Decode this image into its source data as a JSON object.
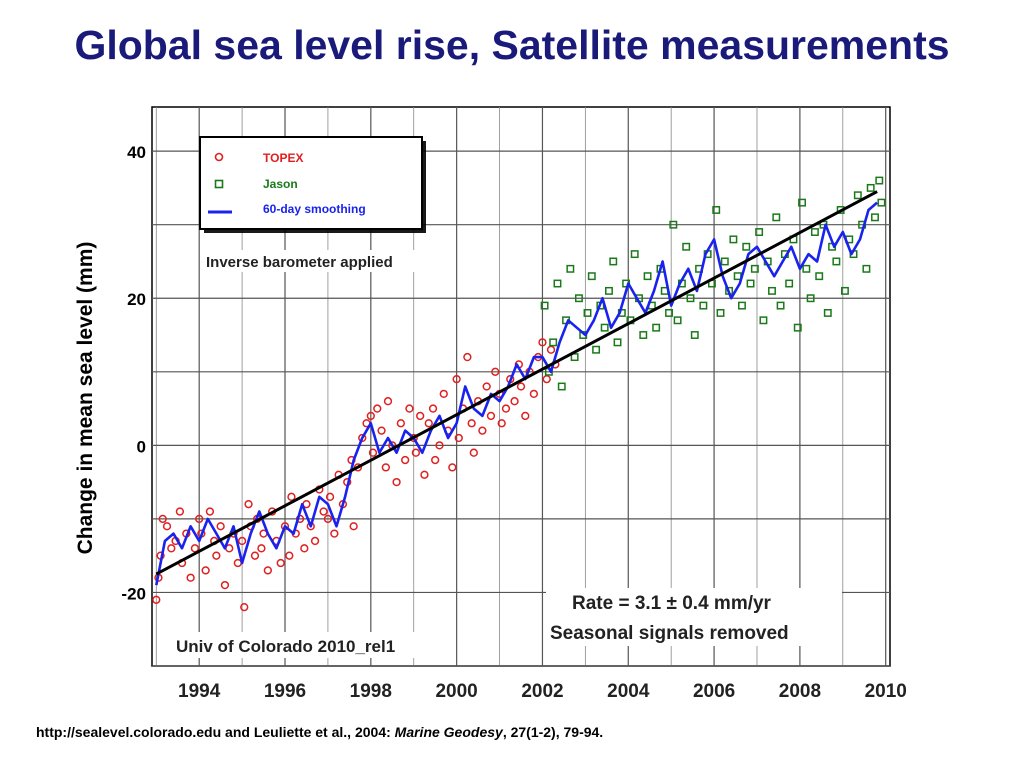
{
  "slide": {
    "title": "Global sea level rise, Satellite measurements",
    "citation": {
      "prefix": "http://sealevel.colorado.edu and Leuliette et al., 2004: ",
      "journal": "Marine Geodesy",
      "suffix": ", 27(1-2), 79-94."
    }
  },
  "colors": {
    "topex": "#e02020",
    "jason": "#1a7a1a",
    "smoothing": "#1a22ee",
    "trend": "#000000",
    "grid": "#555555"
  },
  "chart_data": {
    "type": "scatter",
    "title": "",
    "xlabel": "",
    "ylabel": "Change in mean sea level (mm)",
    "xlim": [
      1992.9,
      2010.1
    ],
    "ylim": [
      -30,
      46
    ],
    "x_ticks": [
      1994,
      1996,
      1998,
      2000,
      2002,
      2004,
      2006,
      2008,
      2010
    ],
    "y_ticks": [
      -20,
      0,
      20,
      40
    ],
    "grid": true,
    "legend_position": "top-left",
    "legend": [
      {
        "name": "TOPEX",
        "marker": "circle"
      },
      {
        "name": "Jason",
        "marker": "square"
      },
      {
        "name": "60-day smoothing",
        "marker": "line"
      }
    ],
    "annotations": [
      "Inverse barometer applied",
      "Univ of Colorado 2010_rel1",
      "Rate = 3.1 ± 0.4 mm/yr",
      "Seasonal signals removed"
    ],
    "trend_line": {
      "x": [
        1993.0,
        2009.8
      ],
      "y": [
        -17.5,
        34.5
      ]
    },
    "smoothing": {
      "name": "60-day smoothing",
      "x": [
        1993.0,
        1993.2,
        1993.4,
        1993.6,
        1993.8,
        1994.0,
        1994.2,
        1994.4,
        1994.6,
        1994.8,
        1995.0,
        1995.2,
        1995.4,
        1995.6,
        1995.8,
        1996.0,
        1996.2,
        1996.4,
        1996.6,
        1996.8,
        1997.0,
        1997.2,
        1997.4,
        1997.6,
        1997.8,
        1998.0,
        1998.2,
        1998.4,
        1998.6,
        1998.8,
        1999.0,
        1999.2,
        1999.4,
        1999.6,
        1999.8,
        2000.0,
        2000.2,
        2000.4,
        2000.6,
        2000.8,
        2001.0,
        2001.2,
        2001.4,
        2001.6,
        2001.8,
        2002.0,
        2002.2,
        2002.4,
        2002.6,
        2002.8,
        2003.0,
        2003.2,
        2003.4,
        2003.6,
        2003.8,
        2004.0,
        2004.2,
        2004.4,
        2004.6,
        2004.8,
        2005.0,
        2005.2,
        2005.4,
        2005.6,
        2005.8,
        2006.0,
        2006.2,
        2006.4,
        2006.6,
        2006.8,
        2007.0,
        2007.2,
        2007.4,
        2007.6,
        2007.8,
        2008.0,
        2008.2,
        2008.4,
        2008.6,
        2008.8,
        2009.0,
        2009.2,
        2009.4,
        2009.6,
        2009.8
      ],
      "y": [
        -19,
        -13,
        -12,
        -14,
        -11,
        -13,
        -10,
        -12,
        -14,
        -11,
        -16,
        -12,
        -9,
        -12,
        -14,
        -11,
        -12,
        -8,
        -11,
        -7,
        -8,
        -11,
        -7,
        -2,
        1,
        3,
        -1,
        1,
        -1,
        2,
        1,
        -1,
        2,
        4,
        1,
        3,
        8,
        5,
        4,
        7,
        6,
        8,
        11,
        9,
        12,
        12,
        10,
        14,
        17,
        16,
        15,
        17,
        20,
        16,
        18,
        22,
        20,
        18,
        21,
        25,
        19,
        22,
        24,
        21,
        26,
        28,
        23,
        20,
        22,
        26,
        27,
        25,
        23,
        25,
        27,
        24,
        26,
        25,
        30,
        27,
        29,
        26,
        28,
        32,
        33
      ]
    },
    "series": [
      {
        "name": "TOPEX",
        "marker": "circle",
        "x": [
          1993.0,
          1993.05,
          1993.1,
          1993.15,
          1993.25,
          1993.35,
          1993.45,
          1993.55,
          1993.6,
          1993.7,
          1993.8,
          1993.9,
          1994.0,
          1994.05,
          1994.15,
          1994.25,
          1994.35,
          1994.4,
          1994.5,
          1994.6,
          1994.7,
          1994.8,
          1994.9,
          1995.0,
          1995.05,
          1995.15,
          1995.2,
          1995.3,
          1995.35,
          1995.45,
          1995.5,
          1995.6,
          1995.7,
          1995.8,
          1995.9,
          1996.0,
          1996.1,
          1996.15,
          1996.25,
          1996.35,
          1996.45,
          1996.5,
          1996.6,
          1996.7,
          1996.8,
          1996.9,
          1997.0,
          1997.05,
          1997.15,
          1997.25,
          1997.35,
          1997.45,
          1997.55,
          1997.6,
          1997.7,
          1997.8,
          1997.9,
          1998.0,
          1998.05,
          1998.15,
          1998.25,
          1998.35,
          1998.4,
          1998.5,
          1998.6,
          1998.7,
          1998.8,
          1998.9,
          1999.0,
          1999.05,
          1999.15,
          1999.25,
          1999.35,
          1999.45,
          1999.5,
          1999.6,
          1999.7,
          1999.8,
          1999.9,
          2000.0,
          2000.05,
          2000.15,
          2000.25,
          2000.35,
          2000.4,
          2000.5,
          2000.6,
          2000.7,
          2000.8,
          2000.9,
          2001.0,
          2001.05,
          2001.15,
          2001.25,
          2001.35,
          2001.45,
          2001.5,
          2001.6,
          2001.7,
          2001.8,
          2001.9,
          2002.0,
          2002.1,
          2002.2,
          2002.3
        ],
        "y": [
          -21,
          -18,
          -15,
          -10,
          -11,
          -14,
          -13,
          -9,
          -16,
          -12,
          -18,
          -14,
          -10,
          -12,
          -17,
          -9,
          -13,
          -15,
          -11,
          -19,
          -14,
          -12,
          -16,
          -13,
          -22,
          -8,
          -11,
          -15,
          -10,
          -14,
          -12,
          -17,
          -9,
          -13,
          -16,
          -11,
          -15,
          -7,
          -12,
          -10,
          -14,
          -8,
          -11,
          -13,
          -6,
          -9,
          -10,
          -7,
          -12,
          -4,
          -8,
          -5,
          -2,
          -11,
          -3,
          1,
          3,
          4,
          -1,
          5,
          2,
          -3,
          6,
          0,
          -5,
          3,
          -2,
          5,
          1,
          -1,
          4,
          -4,
          3,
          5,
          -2,
          0,
          7,
          2,
          -3,
          9,
          1,
          5,
          12,
          3,
          -1,
          6,
          2,
          8,
          4,
          10,
          7,
          3,
          5,
          9,
          6,
          11,
          8,
          4,
          10,
          7,
          12,
          14,
          9,
          13,
          11
        ]
      },
      {
        "name": "Jason",
        "marker": "square",
        "x": [
          2002.05,
          2002.15,
          2002.25,
          2002.35,
          2002.45,
          2002.55,
          2002.65,
          2002.75,
          2002.85,
          2002.95,
          2003.05,
          2003.15,
          2003.25,
          2003.35,
          2003.45,
          2003.55,
          2003.65,
          2003.75,
          2003.85,
          2003.95,
          2004.05,
          2004.15,
          2004.25,
          2004.35,
          2004.45,
          2004.55,
          2004.65,
          2004.75,
          2004.85,
          2004.95,
          2005.05,
          2005.15,
          2005.25,
          2005.35,
          2005.45,
          2005.55,
          2005.65,
          2005.75,
          2005.85,
          2005.95,
          2006.05,
          2006.15,
          2006.25,
          2006.35,
          2006.45,
          2006.55,
          2006.65,
          2006.75,
          2006.85,
          2006.95,
          2007.05,
          2007.15,
          2007.25,
          2007.35,
          2007.45,
          2007.55,
          2007.65,
          2007.75,
          2007.85,
          2007.95,
          2008.05,
          2008.15,
          2008.25,
          2008.35,
          2008.45,
          2008.55,
          2008.65,
          2008.75,
          2008.85,
          2008.95,
          2009.05,
          2009.15,
          2009.25,
          2009.35,
          2009.45,
          2009.55,
          2009.65,
          2009.75,
          2009.85,
          2009.9
        ],
        "y": [
          19,
          10,
          14,
          22,
          8,
          17,
          24,
          12,
          20,
          15,
          18,
          23,
          13,
          19,
          16,
          21,
          25,
          14,
          18,
          22,
          17,
          26,
          20,
          15,
          23,
          19,
          16,
          24,
          21,
          18,
          30,
          17,
          22,
          27,
          20,
          15,
          24,
          19,
          26,
          22,
          32,
          18,
          25,
          21,
          28,
          23,
          19,
          27,
          22,
          24,
          29,
          17,
          25,
          21,
          31,
          19,
          26,
          22,
          28,
          16,
          33,
          24,
          20,
          29,
          23,
          30,
          18,
          27,
          25,
          32,
          21,
          28,
          26,
          34,
          30,
          24,
          35,
          31,
          36,
          33
        ]
      }
    ]
  }
}
